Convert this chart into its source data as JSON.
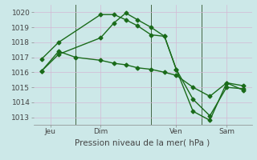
{
  "bg_color": "#cce8e8",
  "grid_color": "#d4b8d4",
  "line_color": "#1a6b1a",
  "marker": "D",
  "marker_size": 2.5,
  "linewidth": 1.0,
  "xlabel": "Pression niveau de la mer( hPa )",
  "ylim": [
    1012.5,
    1020.5
  ],
  "yticks": [
    1013,
    1014,
    1015,
    1016,
    1017,
    1018,
    1019,
    1020
  ],
  "xlim": [
    0,
    13
  ],
  "day_positions": [
    1,
    4,
    8.5,
    11.5
  ],
  "day_labels": [
    "Jeu",
    "Dim",
    "Ven",
    "Sam"
  ],
  "vline_x": [
    2.5,
    7.0,
    10.0
  ],
  "series1_x": [
    0.5,
    1.5,
    4.0,
    4.8,
    5.5,
    6.2,
    7.0,
    7.8,
    8.5,
    9.5,
    10.5,
    11.5,
    12.5
  ],
  "series1_y": [
    1016.9,
    1018.0,
    1019.85,
    1019.85,
    1019.5,
    1019.1,
    1018.5,
    1018.4,
    1016.2,
    1014.2,
    1013.1,
    1015.0,
    1014.9
  ],
  "series2_x": [
    0.5,
    1.5,
    4.0,
    4.8,
    5.5,
    6.2,
    7.0,
    7.8,
    8.5,
    9.5,
    10.5,
    11.5,
    12.5
  ],
  "series2_y": [
    1016.1,
    1017.2,
    1018.3,
    1019.3,
    1019.95,
    1019.5,
    1019.0,
    1018.4,
    1016.2,
    1013.4,
    1012.8,
    1015.3,
    1014.8
  ],
  "series3_x": [
    0.5,
    1.5,
    2.5,
    4.0,
    4.8,
    5.5,
    6.2,
    7.0,
    7.8,
    8.5,
    9.5,
    10.5,
    11.5,
    12.5
  ],
  "series3_y": [
    1016.1,
    1017.4,
    1017.0,
    1016.8,
    1016.6,
    1016.5,
    1016.3,
    1016.2,
    1016.0,
    1015.8,
    1015.0,
    1014.4,
    1015.3,
    1015.1
  ],
  "tick_color": "#444444",
  "fontsize_label": 7.5,
  "fontsize_tick": 6.5,
  "spine_color": "#888888"
}
